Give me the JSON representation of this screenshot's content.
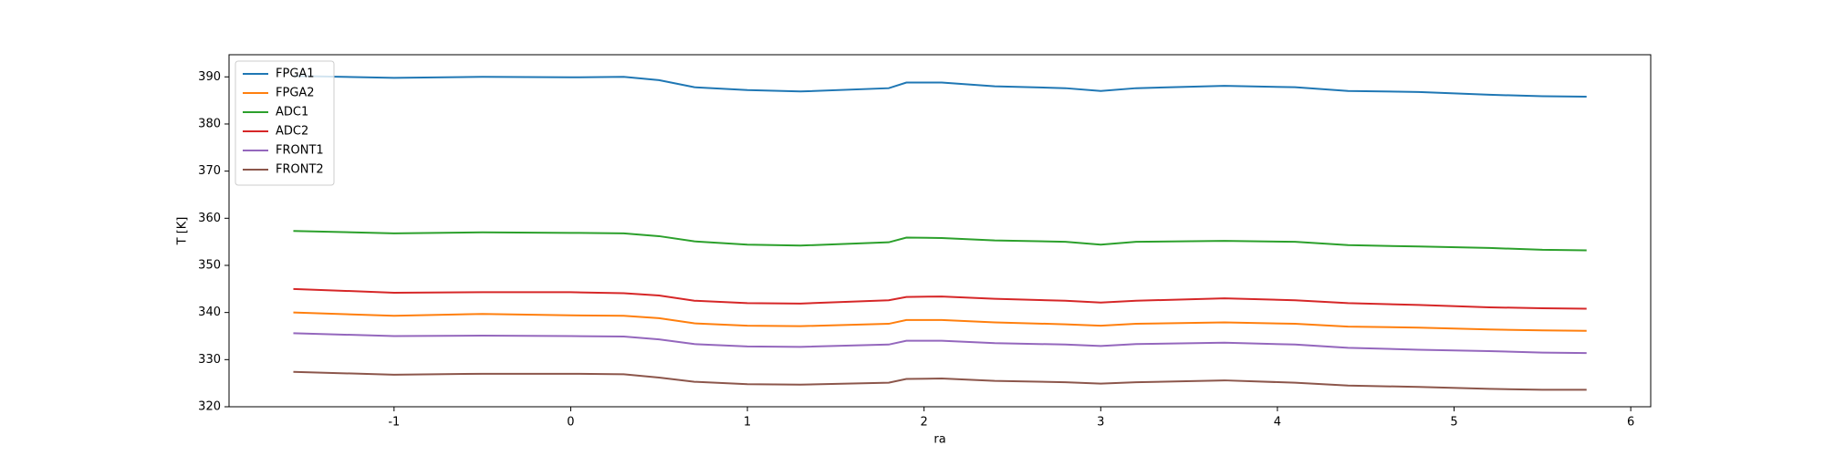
{
  "chart_data": {
    "type": "line",
    "x_label": "ra",
    "y_label": "T [K]",
    "x": [
      -1.57,
      -1.0,
      -0.5,
      0,
      0.3,
      0.5,
      0.7,
      1.0,
      1.3,
      1.8,
      1.9,
      2.1,
      2.4,
      2.8,
      3.0,
      3.2,
      3.7,
      4.1,
      4.4,
      4.8,
      5.2,
      5.5,
      5.75
    ],
    "series": [
      {
        "name": "FPGA1",
        "color": "#1f77b4",
        "values": [
          390.2,
          389.8,
          390.0,
          389.9,
          390.0,
          389.3,
          387.8,
          387.2,
          386.9,
          387.6,
          388.8,
          388.8,
          388.0,
          387.6,
          387.0,
          387.6,
          388.1,
          387.8,
          387.0,
          386.8,
          386.2,
          385.9,
          385.8
        ]
      },
      {
        "name": "FPGA2",
        "color": "#ff7f0e",
        "values": [
          340.0,
          339.3,
          339.7,
          339.4,
          339.3,
          338.8,
          337.7,
          337.2,
          337.1,
          337.6,
          338.4,
          338.4,
          337.9,
          337.5,
          337.2,
          337.6,
          337.9,
          337.6,
          337.0,
          336.8,
          336.4,
          336.2,
          336.1
        ]
      },
      {
        "name": "ADC1",
        "color": "#2ca02c",
        "values": [
          357.3,
          356.8,
          357.0,
          356.9,
          356.8,
          356.2,
          355.1,
          354.4,
          354.2,
          354.9,
          355.9,
          355.8,
          355.3,
          355.0,
          354.4,
          355.0,
          355.2,
          355.0,
          354.3,
          354.0,
          353.7,
          353.3,
          353.2
        ]
      },
      {
        "name": "ADC2",
        "color": "#d62728",
        "values": [
          345.0,
          344.2,
          344.3,
          344.3,
          344.1,
          343.6,
          342.5,
          342.0,
          341.9,
          342.6,
          343.3,
          343.4,
          342.9,
          342.5,
          342.1,
          342.5,
          343.0,
          342.6,
          342.0,
          341.6,
          341.1,
          340.9,
          340.8
        ]
      },
      {
        "name": "FRONT1",
        "color": "#9467bd",
        "values": [
          335.6,
          335.0,
          335.1,
          335.0,
          334.9,
          334.3,
          333.3,
          332.8,
          332.7,
          333.2,
          334.0,
          334.0,
          333.5,
          333.2,
          332.9,
          333.3,
          333.6,
          333.2,
          332.5,
          332.1,
          331.8,
          331.5,
          331.4
        ]
      },
      {
        "name": "FRONT2",
        "color": "#8c564b",
        "values": [
          327.4,
          326.8,
          327.0,
          327.0,
          326.9,
          326.2,
          325.3,
          324.8,
          324.7,
          325.1,
          325.9,
          326.0,
          325.5,
          325.2,
          324.9,
          325.2,
          325.6,
          325.1,
          324.5,
          324.2,
          323.8,
          323.6,
          323.6
        ]
      }
    ],
    "xlim": [
      -1.934,
      6.113
    ],
    "xticks": [
      -1,
      0,
      1,
      2,
      3,
      4,
      5,
      6
    ],
    "ylim": [
      320,
      394.7
    ],
    "yticks": [
      320,
      330,
      340,
      350,
      360,
      370,
      380,
      390
    ],
    "legend": "upper left"
  }
}
